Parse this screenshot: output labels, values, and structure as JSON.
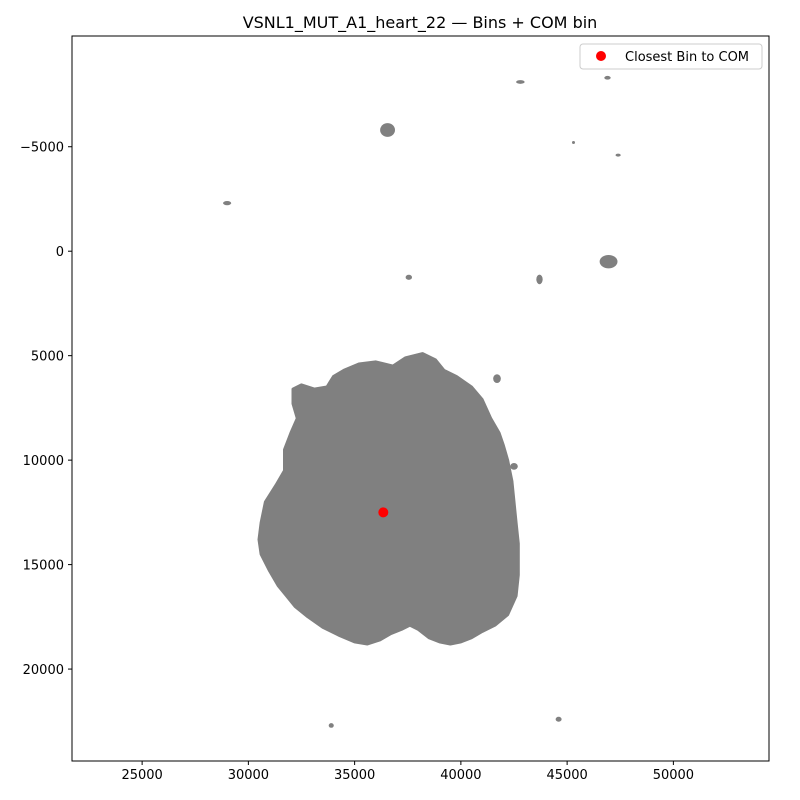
{
  "chart_data": {
    "type": "scatter",
    "title": "VSNL1_MUT_A1_heart_22 — Bins + COM bin",
    "xlabel": "",
    "ylabel": "",
    "xlim": [
      21700,
      54500
    ],
    "ylim": [
      -10300,
      24400
    ],
    "y_inverted": true,
    "grid": false,
    "legend_placement": "top-right",
    "x_ticks": [
      25000,
      30000,
      35000,
      40000,
      45000,
      50000
    ],
    "y_ticks": [
      -5000,
      0,
      5000,
      10000,
      15000,
      20000
    ],
    "x_tick_labels": [
      "25000",
      "30000",
      "35000",
      "40000",
      "45000",
      "50000"
    ],
    "y_tick_labels": [
      "−5000",
      "0",
      "5000",
      "10000",
      "15000",
      "20000"
    ],
    "bins_color": "#808080",
    "tissue_outline": [
      [
        36000,
        5300
      ],
      [
        36800,
        5500
      ],
      [
        37400,
        5100
      ],
      [
        38200,
        4900
      ],
      [
        38800,
        5200
      ],
      [
        39200,
        5700
      ],
      [
        39800,
        6000
      ],
      [
        40500,
        6500
      ],
      [
        41000,
        7100
      ],
      [
        41400,
        8000
      ],
      [
        41800,
        8700
      ],
      [
        42000,
        9300
      ],
      [
        42200,
        10000
      ],
      [
        42400,
        11000
      ],
      [
        42500,
        12000
      ],
      [
        42600,
        13000
      ],
      [
        42700,
        14000
      ],
      [
        42700,
        15500
      ],
      [
        42600,
        16500
      ],
      [
        42200,
        17400
      ],
      [
        41600,
        17900
      ],
      [
        41000,
        18200
      ],
      [
        40500,
        18500
      ],
      [
        40000,
        18700
      ],
      [
        39500,
        18800
      ],
      [
        39000,
        18700
      ],
      [
        38500,
        18500
      ],
      [
        38000,
        18100
      ],
      [
        37600,
        17900
      ],
      [
        37200,
        18100
      ],
      [
        36700,
        18300
      ],
      [
        36200,
        18600
      ],
      [
        35600,
        18800
      ],
      [
        35000,
        18700
      ],
      [
        34300,
        18400
      ],
      [
        33500,
        18000
      ],
      [
        32800,
        17500
      ],
      [
        32200,
        17000
      ],
      [
        31800,
        16500
      ],
      [
        31400,
        16000
      ],
      [
        31000,
        15300
      ],
      [
        30600,
        14500
      ],
      [
        30500,
        13800
      ],
      [
        30600,
        13000
      ],
      [
        30800,
        12000
      ],
      [
        31300,
        11200
      ],
      [
        31700,
        10500
      ],
      [
        31700,
        9500
      ],
      [
        32000,
        8700
      ],
      [
        32300,
        8000
      ],
      [
        32100,
        7300
      ],
      [
        32100,
        6600
      ],
      [
        32500,
        6400
      ],
      [
        33100,
        6600
      ],
      [
        33700,
        6500
      ],
      [
        34000,
        6000
      ],
      [
        34500,
        5700
      ],
      [
        35200,
        5400
      ]
    ],
    "small_clusters": [
      {
        "x": 36550,
        "y": -5800,
        "rx": 350,
        "ry": 330
      },
      {
        "x": 42800,
        "y": -8100,
        "rx": 200,
        "ry": 90
      },
      {
        "x": 46900,
        "y": -8300,
        "rx": 150,
        "ry": 90
      },
      {
        "x": 45300,
        "y": -5200,
        "rx": 70,
        "ry": 60
      },
      {
        "x": 47400,
        "y": -4600,
        "rx": 120,
        "ry": 60
      },
      {
        "x": 29000,
        "y": -2300,
        "rx": 190,
        "ry": 100
      },
      {
        "x": 46950,
        "y": 500,
        "rx": 420,
        "ry": 320
      },
      {
        "x": 37550,
        "y": 1250,
        "rx": 150,
        "ry": 120
      },
      {
        "x": 43700,
        "y": 1350,
        "rx": 150,
        "ry": 230
      },
      {
        "x": 41700,
        "y": 6100,
        "rx": 180,
        "ry": 210
      },
      {
        "x": 42500,
        "y": 10300,
        "rx": 180,
        "ry": 160
      },
      {
        "x": 33900,
        "y": 22700,
        "rx": 120,
        "ry": 110
      },
      {
        "x": 44600,
        "y": 22400,
        "rx": 140,
        "ry": 120
      }
    ],
    "com_bin": {
      "name": "Closest Bin to COM",
      "x": 36350,
      "y": 12500,
      "color": "#ff0000"
    },
    "legend": [
      {
        "label": "Closest Bin to COM",
        "color": "#ff0000",
        "marker": "circle"
      }
    ]
  }
}
